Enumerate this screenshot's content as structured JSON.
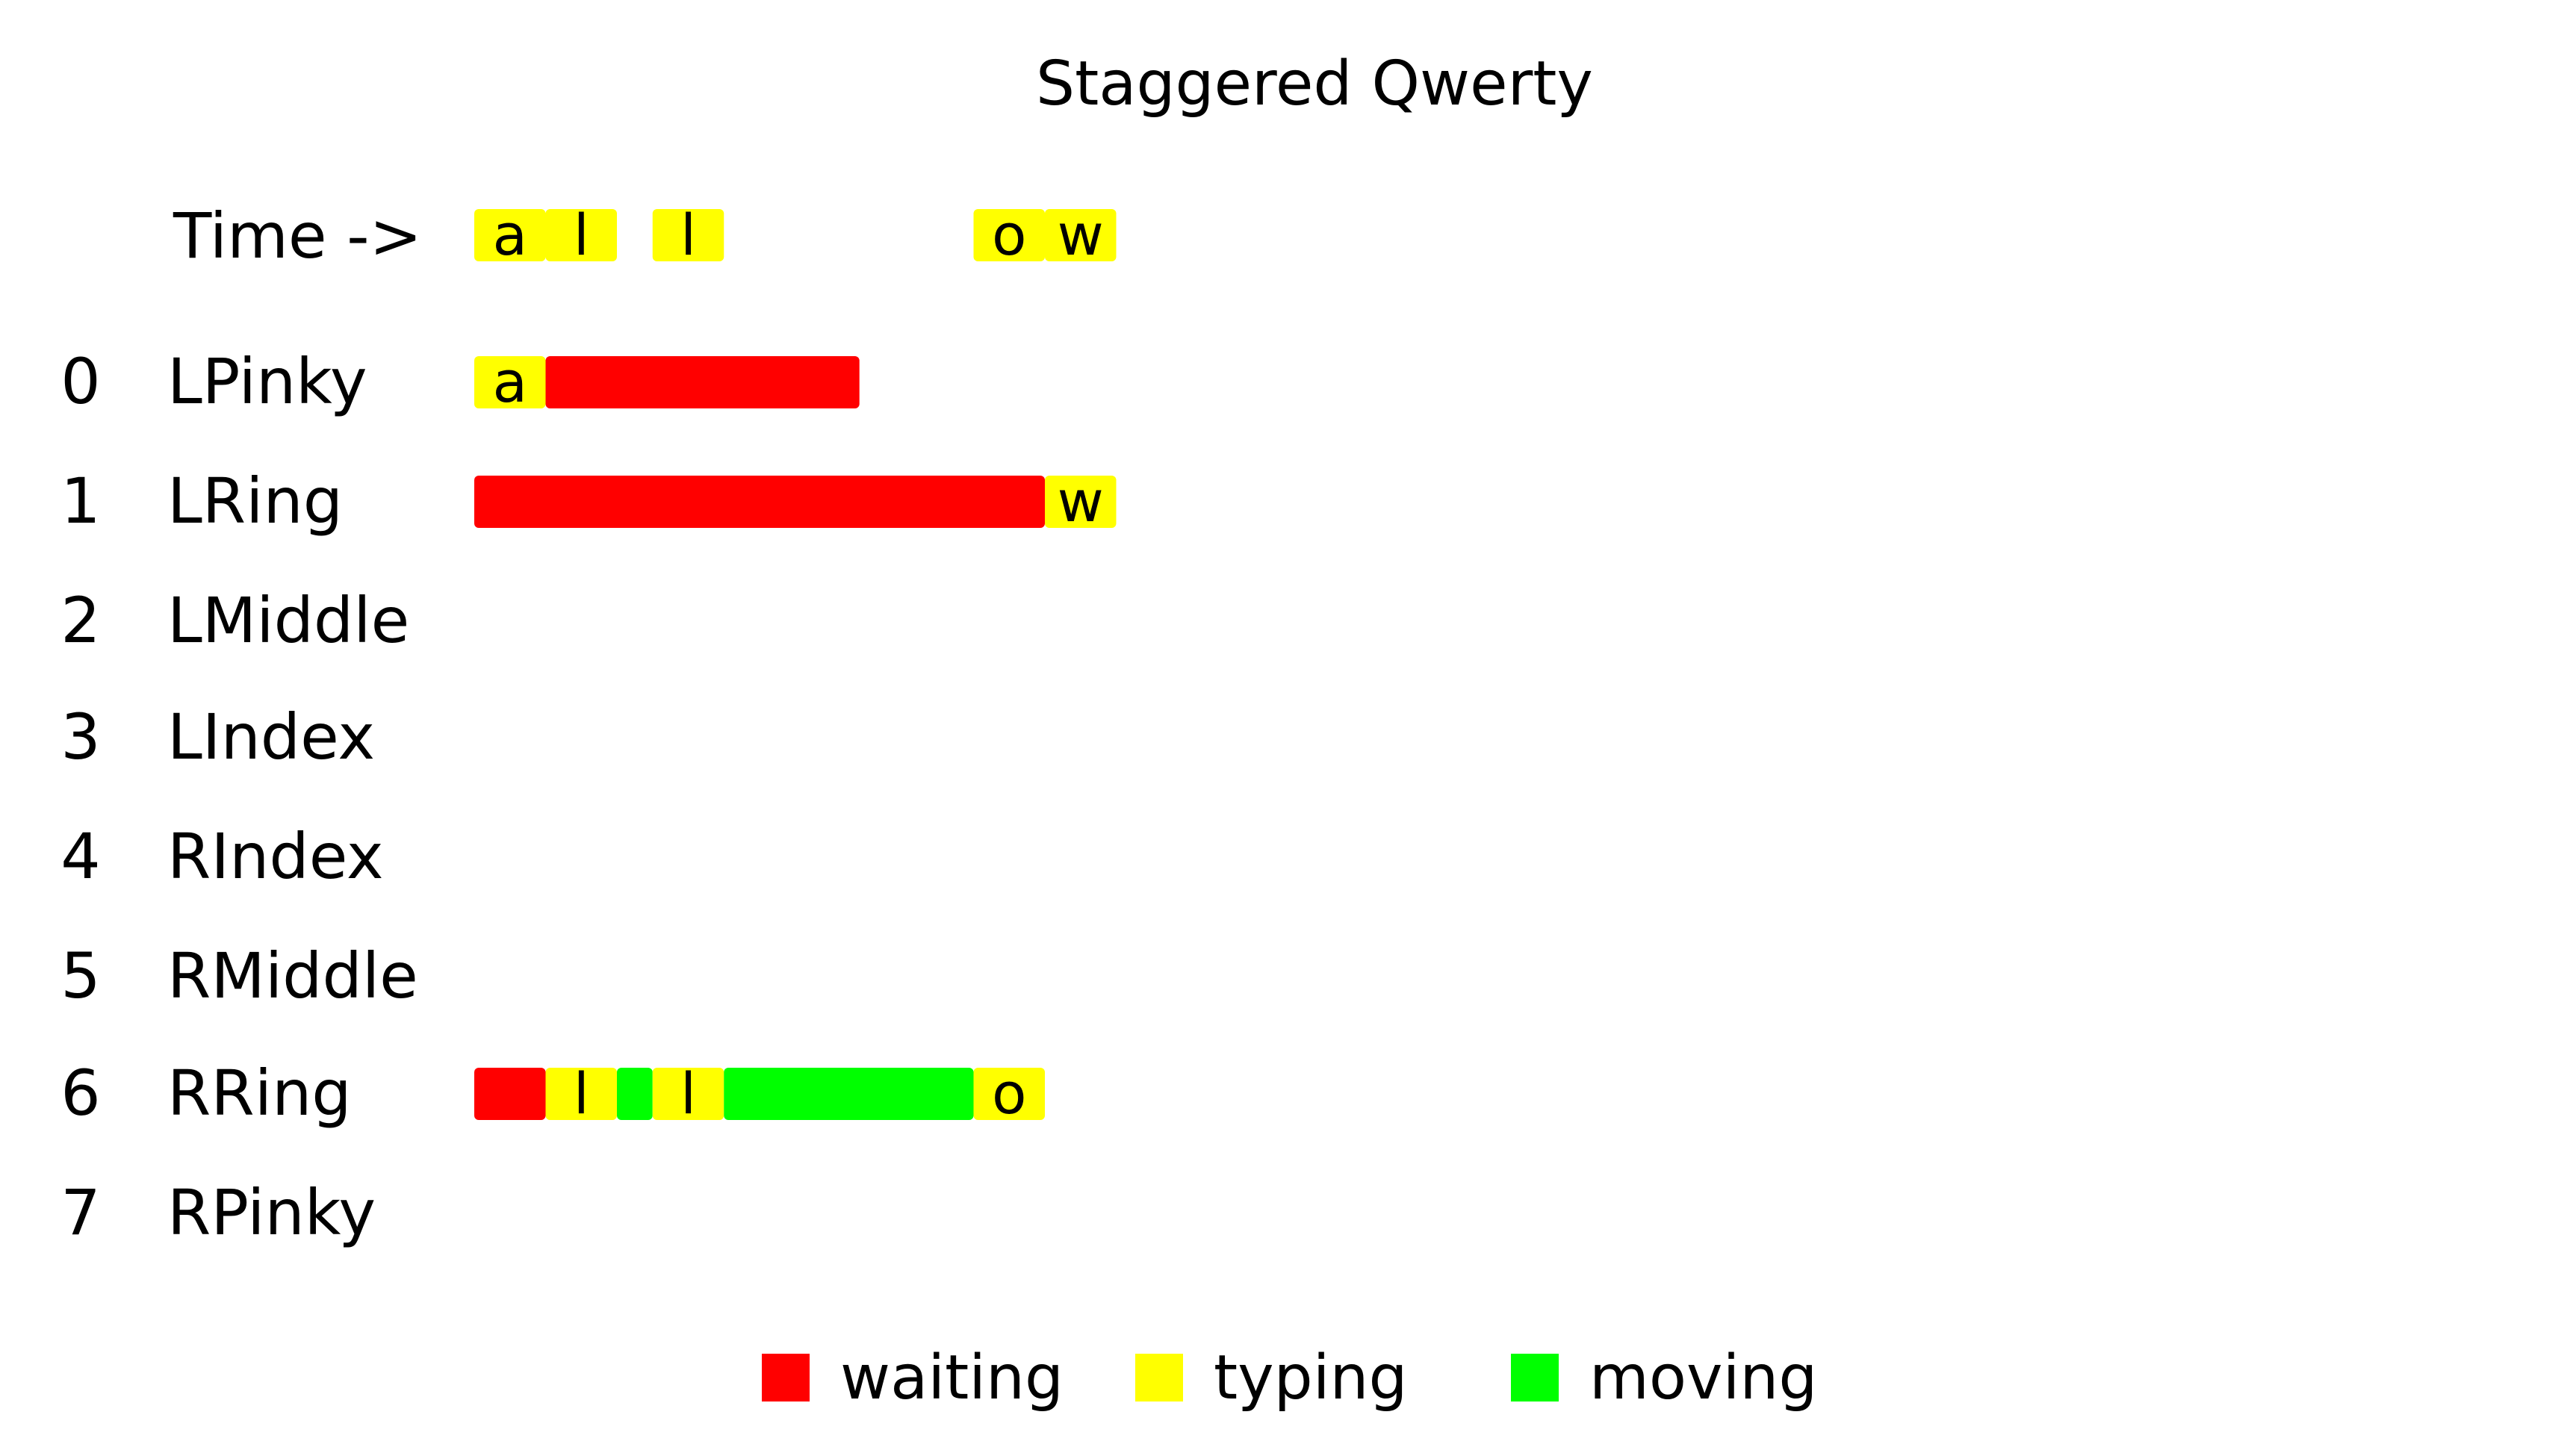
{
  "chart_data": {
    "type": "timeline",
    "title": "Staggered Qwerty",
    "time_label": "Time ->",
    "colors": {
      "waiting": "#ff0000",
      "typing": "#ffff00",
      "moving": "#00ff00"
    },
    "time_row": [
      {
        "start": 0,
        "end": 1,
        "state": "typing",
        "key": "a"
      },
      {
        "start": 1,
        "end": 2,
        "state": "typing",
        "key": "l"
      },
      {
        "start": 2.5,
        "end": 3.5,
        "state": "typing",
        "key": "l"
      },
      {
        "start": 7,
        "end": 8,
        "state": "typing",
        "key": "o"
      },
      {
        "start": 8,
        "end": 9,
        "state": "typing",
        "key": "w"
      }
    ],
    "fingers": [
      {
        "index": "0",
        "name": "LPinky",
        "segments": [
          {
            "start": 0,
            "end": 1,
            "state": "typing",
            "key": "a"
          },
          {
            "start": 1,
            "end": 5.4,
            "state": "waiting",
            "key": ""
          }
        ]
      },
      {
        "index": "1",
        "name": "LRing",
        "segments": [
          {
            "start": 0,
            "end": 8,
            "state": "waiting",
            "key": ""
          },
          {
            "start": 8,
            "end": 9,
            "state": "typing",
            "key": "w"
          }
        ]
      },
      {
        "index": "2",
        "name": "LMiddle",
        "segments": []
      },
      {
        "index": "3",
        "name": "LIndex",
        "segments": []
      },
      {
        "index": "4",
        "name": "RIndex",
        "segments": []
      },
      {
        "index": "5",
        "name": "RMiddle",
        "segments": []
      },
      {
        "index": "6",
        "name": "RRing",
        "segments": [
          {
            "start": 0,
            "end": 1,
            "state": "waiting",
            "key": ""
          },
          {
            "start": 1,
            "end": 2,
            "state": "typing",
            "key": "l"
          },
          {
            "start": 2,
            "end": 2.5,
            "state": "moving",
            "key": ""
          },
          {
            "start": 2.5,
            "end": 3.5,
            "state": "typing",
            "key": "l"
          },
          {
            "start": 3.5,
            "end": 7,
            "state": "moving",
            "key": ""
          },
          {
            "start": 7,
            "end": 8,
            "state": "typing",
            "key": "o"
          }
        ]
      },
      {
        "index": "7",
        "name": "RPinky",
        "segments": []
      }
    ],
    "legend": [
      {
        "state": "waiting",
        "label": "waiting"
      },
      {
        "state": "typing",
        "label": "typing"
      },
      {
        "state": "moving",
        "label": "moving"
      }
    ]
  }
}
